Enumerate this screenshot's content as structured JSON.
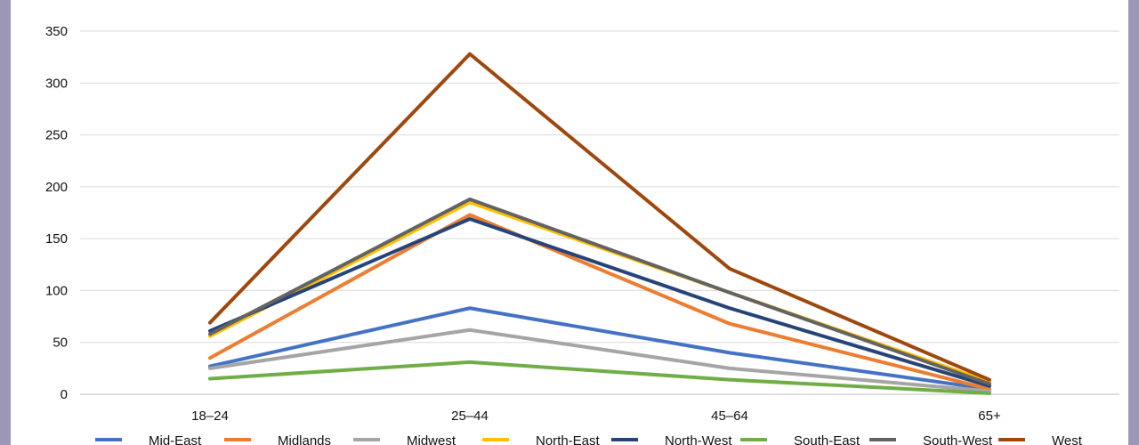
{
  "chart_data": {
    "type": "line",
    "title": "",
    "xlabel": "",
    "ylabel": "",
    "categories": [
      "18–24",
      "25–44",
      "45–64",
      "65+"
    ],
    "ylim": [
      0,
      350
    ],
    "yticks": [
      0,
      50,
      100,
      150,
      200,
      250,
      300,
      350
    ],
    "grid": true,
    "legend": "bottom",
    "series": [
      {
        "name": "Mid-East",
        "color": "#4472c4",
        "values": [
          27,
          83,
          40,
          5
        ]
      },
      {
        "name": "Midlands",
        "color": "#ed7d31",
        "values": [
          35,
          173,
          68,
          5
        ]
      },
      {
        "name": "Midwest",
        "color": "#a5a5a5",
        "values": [
          25,
          62,
          25,
          3
        ]
      },
      {
        "name": "North-East",
        "color": "#ffc000",
        "values": [
          56,
          185,
          98,
          12
        ]
      },
      {
        "name": "North-West",
        "color": "#264478",
        "values": [
          61,
          169,
          83,
          8
        ]
      },
      {
        "name": "South-East",
        "color": "#70ad47",
        "values": [
          15,
          31,
          14,
          1
        ]
      },
      {
        "name": "South-West",
        "color": "#636363",
        "values": [
          58,
          188,
          98,
          10
        ]
      },
      {
        "name": "West",
        "color": "#9e480e",
        "values": [
          69,
          328,
          121,
          14
        ]
      }
    ]
  }
}
